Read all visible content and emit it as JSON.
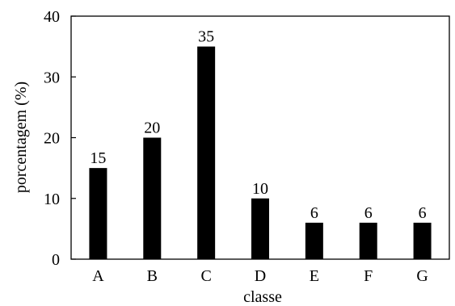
{
  "chart_data": {
    "type": "bar",
    "categories": [
      "A",
      "B",
      "C",
      "D",
      "E",
      "F",
      "G"
    ],
    "values": [
      15,
      20,
      35,
      10,
      6,
      6,
      6
    ],
    "data_labels": [
      "15",
      "20",
      "35",
      "10",
      "6",
      "6",
      "6"
    ],
    "xlabel": "classe",
    "ylabel": "porcentagem (%)",
    "ylim": [
      0,
      40
    ],
    "yticks": [
      0,
      10,
      20,
      30,
      40
    ],
    "ytick_labels": [
      "0",
      "10",
      "20",
      "30",
      "40"
    ],
    "grid": false,
    "legend": "none",
    "bar_color": "#000000"
  }
}
